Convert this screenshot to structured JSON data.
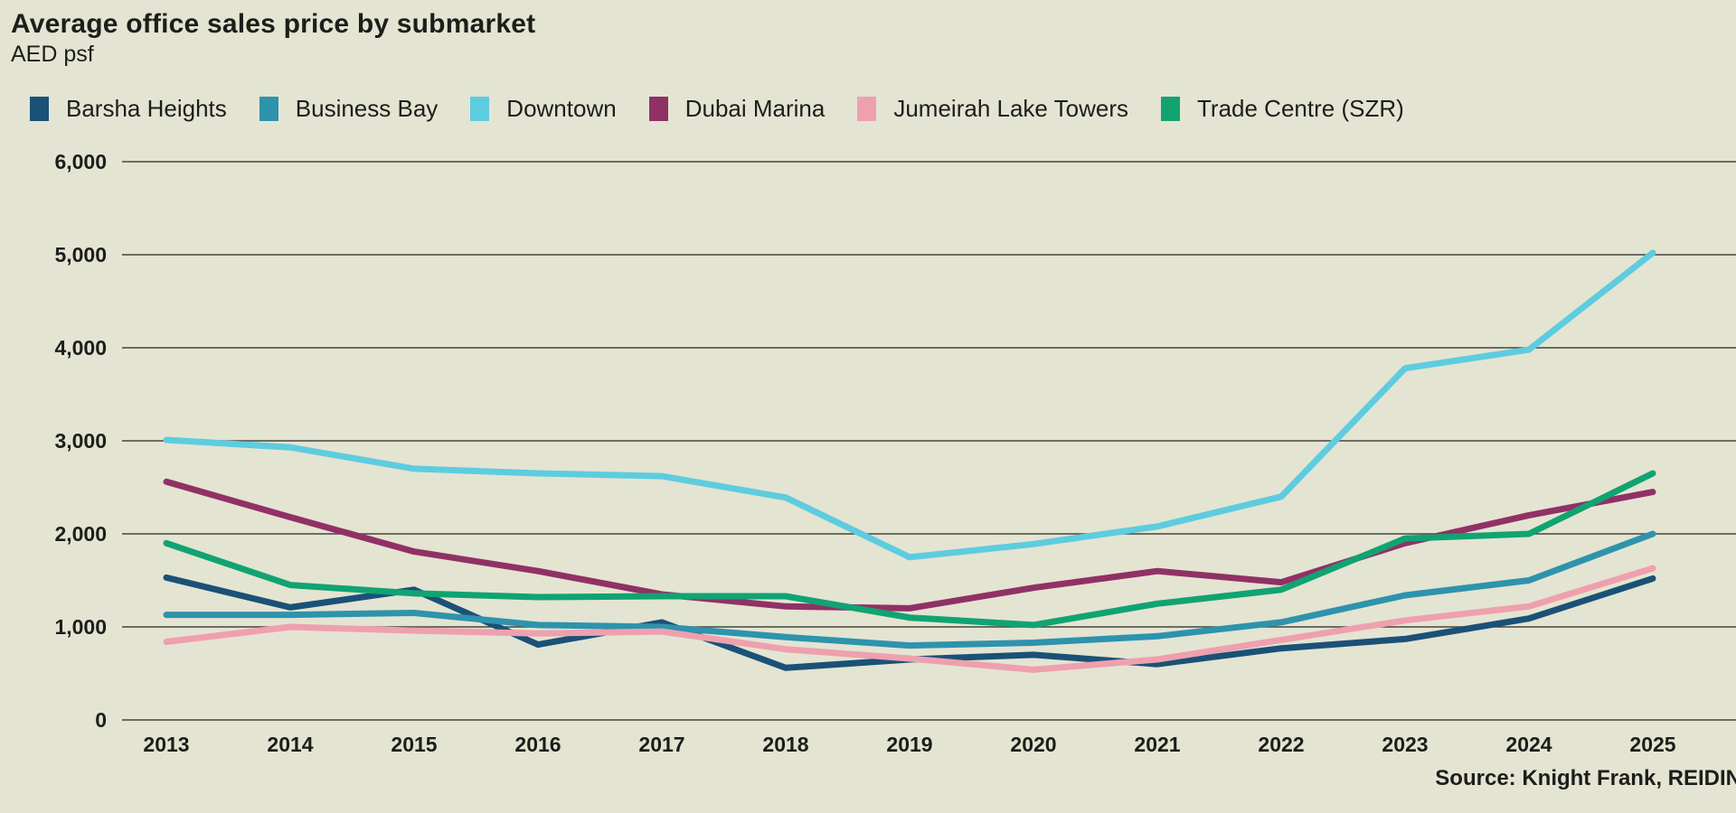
{
  "header": {
    "title": "Average office sales price by submarket",
    "subtitle": "AED psf"
  },
  "footer": {
    "source": "Source: Knight Frank, REIDIN"
  },
  "colors": {
    "background": "#e4e4d2",
    "grid": "#45453c",
    "text": "#1d1d1b"
  },
  "chart_data": {
    "type": "line",
    "title": "Average office sales price by submarket",
    "subtitle": "AED psf",
    "xlabel": "",
    "ylabel": "AED psf",
    "x": [
      2013,
      2014,
      2015,
      2016,
      2017,
      2018,
      2019,
      2020,
      2021,
      2022,
      2023,
      2024,
      2025
    ],
    "ylim": [
      0,
      6000
    ],
    "ytick_step": 1000,
    "grid": "horizontal",
    "legend_position": "top",
    "series": [
      {
        "name": "Barsha Heights",
        "color": "#1a5177",
        "values": [
          1530,
          1210,
          1400,
          810,
          1050,
          560,
          650,
          700,
          600,
          770,
          870,
          1090,
          1520
        ]
      },
      {
        "name": "Business Bay",
        "color": "#2e93ac",
        "values": [
          1130,
          1130,
          1150,
          1020,
          1000,
          890,
          800,
          830,
          900,
          1050,
          1340,
          1500,
          2000
        ]
      },
      {
        "name": "Downtown",
        "color": "#5eccdf",
        "values": [
          3010,
          2930,
          2700,
          2650,
          2620,
          2390,
          1750,
          1890,
          2080,
          2400,
          3780,
          3980,
          5020
        ]
      },
      {
        "name": "Dubai Marina",
        "color": "#903166",
        "values": [
          2560,
          2180,
          1810,
          1600,
          1350,
          1220,
          1200,
          1420,
          1600,
          1480,
          1900,
          2200,
          2450
        ]
      },
      {
        "name": "Jumeirah Lake Towers",
        "color": "#efa0ae",
        "values": [
          840,
          1000,
          960,
          930,
          950,
          760,
          660,
          540,
          650,
          860,
          1070,
          1220,
          1630
        ]
      },
      {
        "name": "Trade Centre (SZR)",
        "color": "#11a372",
        "values": [
          1900,
          1450,
          1360,
          1320,
          1330,
          1330,
          1100,
          1020,
          1250,
          1400,
          1950,
          2000,
          2650
        ]
      }
    ]
  }
}
